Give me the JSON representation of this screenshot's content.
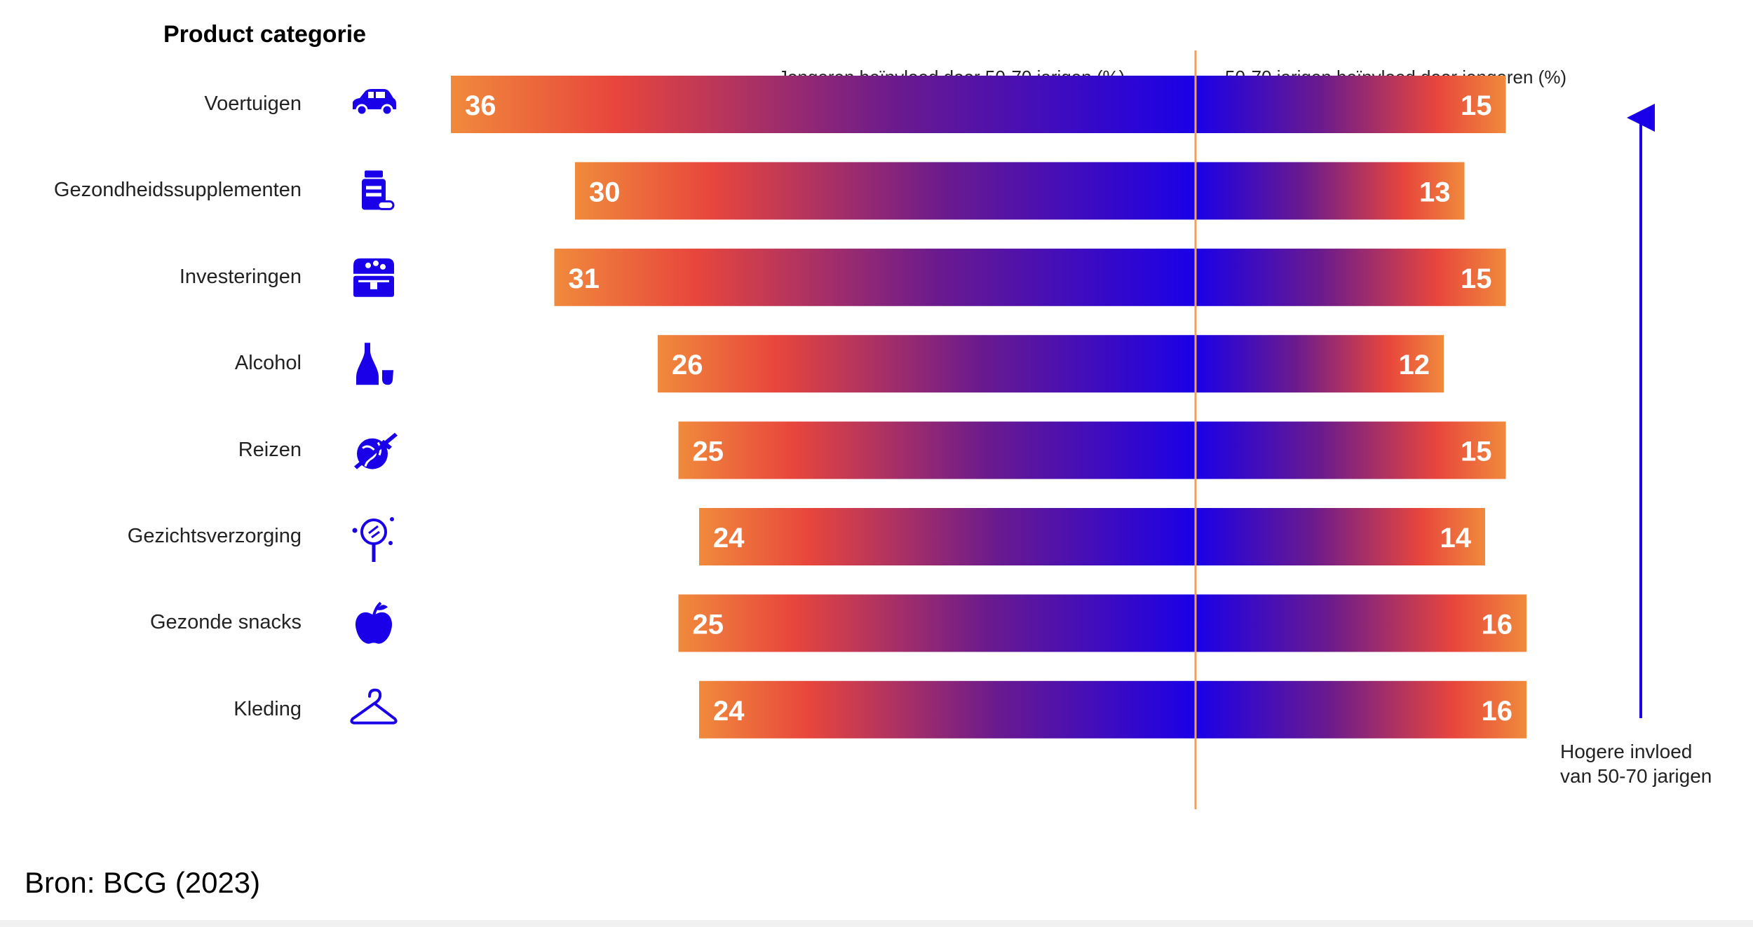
{
  "chart_data": {
    "type": "bar",
    "heading": "Product categorie",
    "left_header": "Jongeren beïnvloed door 50-70 jarigen (%)",
    "right_header": "50-70 jarigen beïnvloed door jongeren (%)",
    "categories": [
      "Voertuigen",
      "Gezondheidssupplementen",
      "Investeringen",
      "Alcohol",
      "Reizen",
      "Gezichtsverzorging",
      "Gezonde snacks",
      "Kleding"
    ],
    "category_icons": [
      "car-icon",
      "supplement-bottle-icon",
      "treasure-chest-icon",
      "sake-bottle-icon",
      "globe-airplane-icon",
      "face-mirror-icon",
      "apple-icon",
      "hanger-icon"
    ],
    "series": [
      {
        "values": [
          36,
          30,
          31,
          26,
          25,
          24,
          25,
          24
        ]
      },
      {
        "values": [
          15,
          13,
          15,
          12,
          15,
          14,
          16,
          16
        ]
      }
    ],
    "arrow_label_line1": "Hogere invloed",
    "arrow_label_line2": "van 50-70 jarigen",
    "colors": {
      "orange": "#f08a3c",
      "red": "#e8463c",
      "purple": "#6a1a8e",
      "blue": "#1a00e8",
      "icon": "#1a00e8",
      "divider": "#f0a058",
      "arrow": "#1a00e8"
    }
  },
  "footer": {
    "source": "Bron: BCG (2023)"
  }
}
